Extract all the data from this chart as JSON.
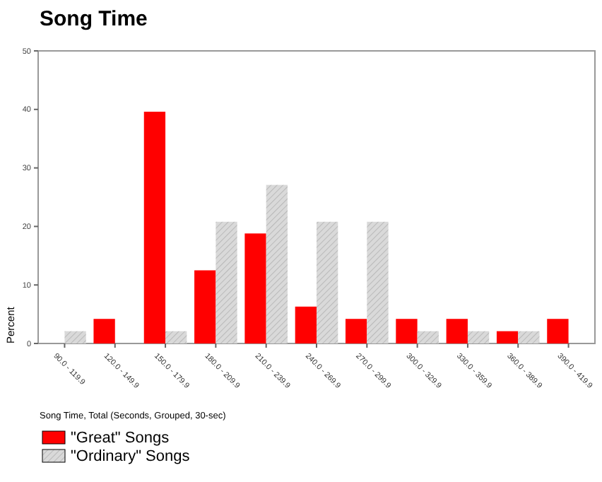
{
  "chart_data": {
    "type": "bar",
    "title": "Song Time",
    "xlabel": "Song Time, Total (Seconds, Grouped, 30-sec)",
    "ylabel": "Percent",
    "categories": [
      "90.0 - 119.9",
      "120.0 - 149.9",
      "150.0 - 179.9",
      "180.0 - 209.9",
      "210.0 - 239.9",
      "240.0 - 269.9",
      "270.0 - 299.9",
      "300.0 - 329.9",
      "330.0 - 359.9",
      "360.0 - 389.9",
      "390.0 - 419.9"
    ],
    "series": [
      {
        "name": "\"Great\" Songs",
        "color": "#ff0000",
        "values": [
          0,
          4.2,
          39.6,
          12.5,
          18.8,
          6.3,
          4.2,
          4.2,
          4.2,
          2.1,
          4.2
        ]
      },
      {
        "name": "\"Ordinary\" Songs",
        "color": "#d9d9d9",
        "values": [
          2.1,
          0,
          2.1,
          20.8,
          27.1,
          20.8,
          20.8,
          2.1,
          2.1,
          2.1,
          0
        ]
      }
    ],
    "ylim": [
      0,
      50
    ],
    "yticks": [
      0,
      10,
      20,
      30,
      40,
      50
    ],
    "legend": "bottom left"
  }
}
